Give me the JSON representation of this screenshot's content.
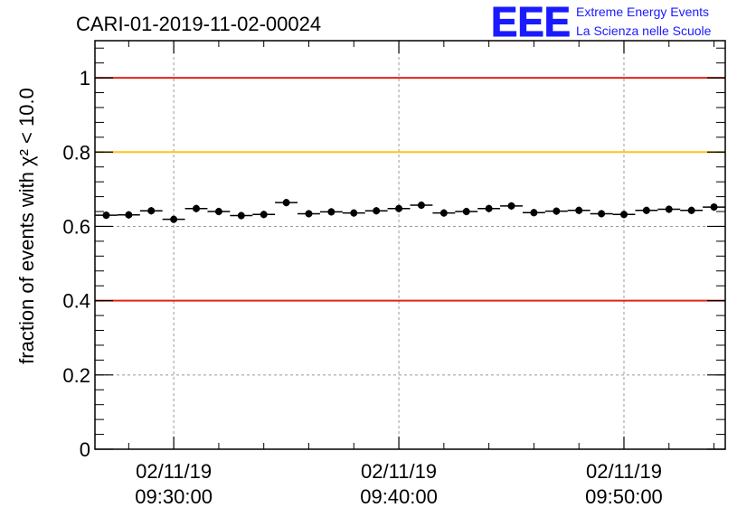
{
  "chart_data": {
    "type": "scatter",
    "title": "CARI-01-2019-11-02-00024",
    "ylabel": "fraction of events with χ² < 10.0",
    "xlabel": "",
    "ylim": [
      0,
      1.1
    ],
    "yticks": [
      0,
      0.2,
      0.4,
      0.6,
      0.8,
      1
    ],
    "ytick_labels": [
      "0",
      "0.2",
      "0.4",
      "0.6",
      "0.8",
      "1"
    ],
    "xlim_minutes": [
      -3.5,
      24.5
    ],
    "xticks": [
      {
        "minute": 0,
        "date": "02/11/19",
        "time": "09:30:00"
      },
      {
        "minute": 10,
        "date": "02/11/19",
        "time": "09:40:00"
      },
      {
        "minute": 20,
        "date": "02/11/19",
        "time": "09:50:00"
      }
    ],
    "x_minor_step_minutes": 2,
    "grid": true,
    "reference_lines": [
      {
        "y": 1.0,
        "color": "#e0251b"
      },
      {
        "y": 0.8,
        "color": "#ffc21a"
      },
      {
        "y": 0.4,
        "color": "#e0251b"
      }
    ],
    "series": [
      {
        "name": "fraction",
        "x_minutes": [
          -3,
          -2,
          -1,
          0,
          1,
          2,
          3,
          4,
          5,
          6,
          7,
          8,
          9,
          10,
          11,
          12,
          13,
          14,
          15,
          16,
          17,
          18,
          19,
          20,
          21,
          22,
          23,
          24
        ],
        "values": [
          0.63,
          0.631,
          0.642,
          0.619,
          0.648,
          0.64,
          0.629,
          0.632,
          0.664,
          0.634,
          0.639,
          0.636,
          0.642,
          0.648,
          0.657,
          0.636,
          0.64,
          0.648,
          0.655,
          0.637,
          0.641,
          0.643,
          0.634,
          0.632,
          0.643,
          0.646,
          0.643,
          0.652
        ],
        "errors": [
          0.01,
          0.01,
          0.01,
          0.01,
          0.01,
          0.01,
          0.01,
          0.01,
          0.01,
          0.01,
          0.01,
          0.01,
          0.01,
          0.01,
          0.01,
          0.01,
          0.01,
          0.01,
          0.01,
          0.01,
          0.01,
          0.01,
          0.01,
          0.01,
          0.01,
          0.01,
          0.01,
          0.01
        ],
        "bin_width_minutes": 1
      }
    ]
  },
  "logo": {
    "mark": "EEE",
    "line1": "Extreme Energy Events",
    "line2": "La Scienza nelle Scuole",
    "color": "#1a1aff"
  }
}
